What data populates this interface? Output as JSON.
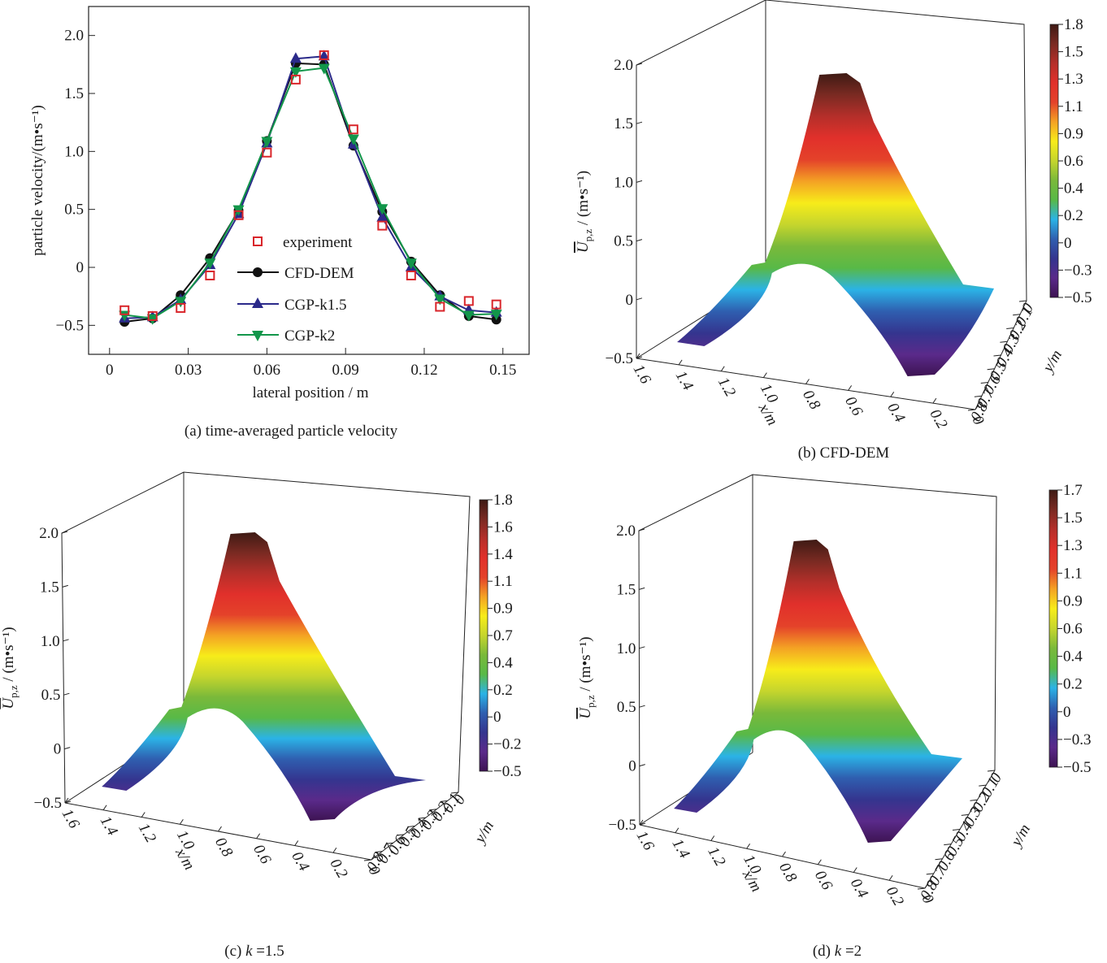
{
  "chart_data": [
    {
      "id": "a",
      "type": "line",
      "caption": "(a) time-averaged particle velocity",
      "xlabel": "lateral position / m",
      "ylabel": "particle velocity/(m•s⁻¹)",
      "xlim": [
        -0.008,
        0.16
      ],
      "ylim": [
        -0.75,
        2.25
      ],
      "xticks": [
        0,
        0.03,
        0.06,
        0.09,
        0.12,
        0.15
      ],
      "xtick_labels": [
        "0",
        "0.03",
        "0.06",
        "0.09",
        "0.12",
        "0.15"
      ],
      "yticks": [
        -0.5,
        0,
        0.5,
        1.0,
        1.5,
        2.0
      ],
      "ytick_labels": [
        "−0.5",
        "0",
        "0.5",
        "1.0",
        "1.5",
        "2.0"
      ],
      "grid": false,
      "legend_position": "lower-center",
      "x": [
        0.0057,
        0.0164,
        0.0271,
        0.0383,
        0.0492,
        0.06,
        0.071,
        0.0818,
        0.093,
        0.104,
        0.115,
        0.126,
        0.137,
        0.1475
      ],
      "series": [
        {
          "name": "experiment",
          "marker": "open-square",
          "line": false,
          "color": "#d9262b",
          "values": [
            -0.37,
            -0.42,
            -0.35,
            -0.07,
            0.45,
            0.99,
            1.62,
            1.83,
            1.19,
            0.36,
            -0.07,
            -0.34,
            -0.29,
            -0.32
          ]
        },
        {
          "name": "CFD-DEM",
          "marker": "filled-circle",
          "line": true,
          "color": "#111111",
          "values": [
            -0.47,
            -0.44,
            -0.24,
            0.08,
            0.49,
            1.09,
            1.76,
            1.75,
            1.05,
            0.48,
            0.05,
            -0.24,
            -0.42,
            -0.45
          ]
        },
        {
          "name": "CGP-k1.5",
          "marker": "filled-triangle-up",
          "line": true,
          "color": "#2b2a8a",
          "values": [
            -0.44,
            -0.43,
            -0.28,
            0.02,
            0.46,
            1.07,
            1.8,
            1.82,
            1.06,
            0.43,
            0.0,
            -0.25,
            -0.37,
            -0.39
          ]
        },
        {
          "name": "CGP-k2",
          "marker": "filled-triangle-down",
          "line": true,
          "color": "#12964a",
          "values": [
            -0.41,
            -0.44,
            -0.29,
            0.04,
            0.5,
            1.09,
            1.69,
            1.72,
            1.11,
            0.51,
            0.04,
            -0.27,
            -0.41,
            -0.4
          ]
        }
      ]
    },
    {
      "id": "b",
      "type": "surface3d",
      "caption": "(b) CFD-DEM",
      "xlabel": "x/m",
      "ylabel": "y/m",
      "zlabel": "U̅p,z / (m•s⁻¹)",
      "zlabel_main": "U",
      "zlabel_sub": "p,z",
      "zlabel_unit": "/ (m•s⁻¹)",
      "xtick_labels": [
        "1.6",
        "1.4",
        "1.2",
        "1.0",
        "0.8",
        "0.6",
        "0.4",
        "0.2",
        "0"
      ],
      "ytick_labels": [
        "0",
        "0.1",
        "0.2",
        "0.3",
        "0.4",
        "0.5",
        "0.6",
        "0.7",
        "0.8"
      ],
      "ytick_labels_rendered": [
        "0",
        "0.1",
        "0.3.2",
        "0.4",
        "0.5",
        "0.6",
        "0.7",
        "0.8"
      ],
      "ztick_labels": [
        "−0.5",
        "0",
        "0.5",
        "1.0",
        "1.5",
        "2.0"
      ],
      "zlim": [
        -0.5,
        2.0
      ],
      "peak_value": 1.8,
      "colorbar_ticks": [
        "1.8",
        "1.5",
        "1.3",
        "1.1",
        "0.9",
        "0.6",
        "0.4",
        "0.2",
        "0",
        "−0.3",
        "−0.5"
      ],
      "colorbar_range": [
        -0.5,
        1.8
      ]
    },
    {
      "id": "c",
      "type": "surface3d",
      "caption_prefix": "(c) ",
      "caption_k": "k",
      "caption_suffix": " =1.5",
      "xlabel": "x/m",
      "ylabel": "y/m",
      "zlabel_main": "U",
      "zlabel_sub": "p,z",
      "zlabel_unit": "/ (m•s⁻¹)",
      "xtick_labels": [
        "1.6",
        "1.4",
        "1.2",
        "1.0",
        "0.8",
        "0.6",
        "0.4",
        "0.2",
        "0"
      ],
      "ytick_labels": [
        "0",
        "0.1",
        "0.2",
        "0.3",
        "0.4",
        "0.5",
        "0.6",
        "0.7",
        "0.8"
      ],
      "ztick_labels": [
        "−0.5",
        "0",
        "0.5",
        "1.0",
        "1.5",
        "2.0"
      ],
      "zlim": [
        -0.5,
        2.0
      ],
      "peak_value": 1.8,
      "colorbar_ticks": [
        "1.8",
        "1.6",
        "1.4",
        "1.1",
        "0.9",
        "0.7",
        "0.4",
        "0.2",
        "0",
        "−0.2",
        "−0.5"
      ],
      "colorbar_range": [
        -0.5,
        1.8
      ]
    },
    {
      "id": "d",
      "type": "surface3d",
      "caption_prefix": "(d) ",
      "caption_k": "k",
      "caption_suffix": " =2",
      "xlabel": "x/m",
      "ylabel": "y/m",
      "zlabel_main": "U",
      "zlabel_sub": "p,z",
      "zlabel_unit": "/ (m•s⁻¹)",
      "xtick_labels": [
        "1.6",
        "1.4",
        "1.2",
        "1.0",
        "0.8",
        "0.6",
        "0.4",
        "0.2",
        "0"
      ],
      "ytick_labels": [
        "0",
        "0.1",
        "0.2",
        "0.3",
        "0.4",
        "0.5",
        "0.6",
        "0.7",
        "0.8"
      ],
      "ztick_labels": [
        "−0.5",
        "0",
        "0.5",
        "1.0",
        "1.5",
        "2.0"
      ],
      "zlim": [
        -0.5,
        2.0
      ],
      "peak_value": 1.7,
      "colorbar_ticks": [
        "1.7",
        "1.5",
        "1.3",
        "1.1",
        "0.9",
        "0.6",
        "0.4",
        "0.2",
        "0",
        "−0.3",
        "−0.5"
      ],
      "colorbar_range": [
        -0.5,
        1.7
      ]
    }
  ],
  "colormap": [
    "#3d1352",
    "#5a2a8a",
    "#34358f",
    "#2f5fb0",
    "#2bb3e6",
    "#58b947",
    "#7ab93a",
    "#c5d52d",
    "#f7ec1a",
    "#f4a224",
    "#e4422a",
    "#e1302b",
    "#b52f2a",
    "#7a2a22",
    "#3e1a14"
  ]
}
